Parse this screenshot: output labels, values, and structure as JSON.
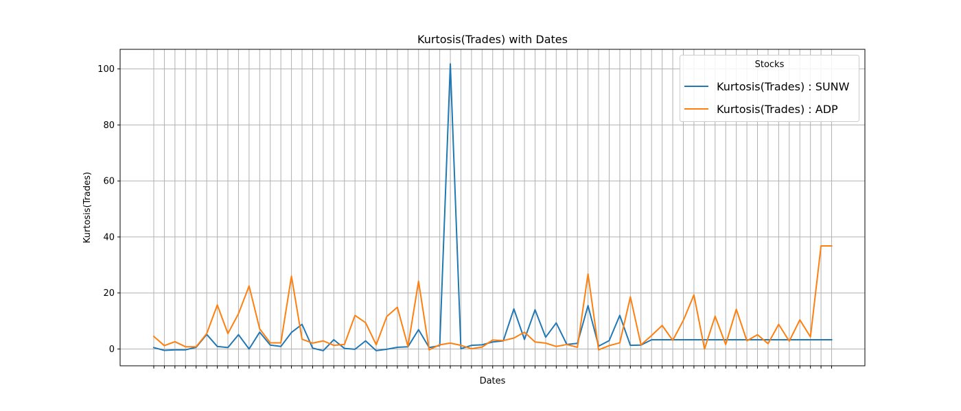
{
  "chart_data": {
    "type": "line",
    "title": "Kurtosis(Trades) with Dates",
    "xlabel": "Dates",
    "ylabel": "Kurtosis(Trades)",
    "ylim": [
      -6,
      107
    ],
    "yticks": [
      0,
      20,
      40,
      60,
      80,
      100
    ],
    "grid": true,
    "legend_title": "Stocks",
    "legend_position": "top-right",
    "series": [
      {
        "name": "Kurtosis(Trades) : SUNW",
        "color": "#1f77b4",
        "values": [
          0.5,
          -0.5,
          -0.3,
          -0.3,
          0.6,
          5.2,
          0.9,
          0.5,
          5.1,
          0,
          6,
          1.4,
          0.9,
          5.9,
          8.8,
          0.3,
          -0.6,
          3.3,
          0.2,
          -0.1,
          2.9,
          -0.6,
          -0.1,
          0.6,
          0.8,
          6.9,
          0.5,
          1.2,
          101.8,
          0.1,
          1.3,
          1.5,
          2.5,
          2.9,
          14.3,
          3.4,
          14,
          4.2,
          9.3,
          1.6,
          2,
          15.5,
          1,
          3,
          12,
          1.3,
          1.4,
          3.3,
          3.3,
          3.3,
          3.3,
          3.3,
          3.3,
          3.3,
          3.3,
          3.3,
          3.3,
          3.3,
          3.3,
          3.3,
          3.3,
          3.3,
          3.3,
          3.3,
          3.3
        ]
      },
      {
        "name": "Kurtosis(Trades) : ADP",
        "color": "#ff7f0e",
        "values": [
          4.5,
          1.2,
          2.6,
          0.8,
          0.8,
          5.5,
          15.7,
          5.5,
          12.6,
          22.5,
          7.2,
          2.2,
          2.2,
          26,
          3.5,
          2.1,
          2.9,
          1.3,
          1.6,
          12,
          9.4,
          1.5,
          11.6,
          14.9,
          0.9,
          24.2,
          -0.3,
          1.5,
          2.1,
          1.3,
          0.1,
          0.7,
          3.2,
          3,
          3.9,
          6,
          2.5,
          2.1,
          0.9,
          1.6,
          0.6,
          26.8,
          -0.3,
          1.2,
          2.2,
          18.6,
          1.5,
          4.8,
          8.4,
          3.1,
          10.2,
          19.3,
          0,
          11.7,
          1.6,
          14.2,
          2.9,
          5.1,
          1.9,
          8.8,
          2.8,
          10.4,
          4.3,
          36.8,
          36.8
        ]
      }
    ]
  }
}
